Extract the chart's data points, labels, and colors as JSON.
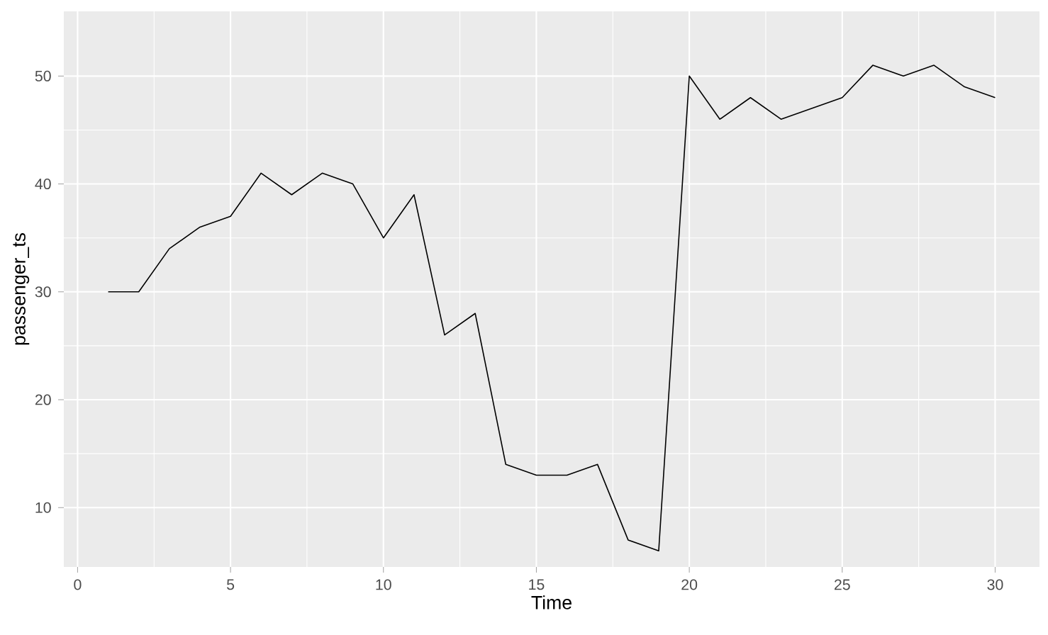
{
  "chart_data": {
    "type": "line",
    "xlabel": "Time",
    "ylabel": "passenger_ts",
    "x": [
      1,
      2,
      3,
      4,
      5,
      6,
      7,
      8,
      9,
      10,
      11,
      12,
      13,
      14,
      15,
      16,
      17,
      18,
      19,
      20,
      21,
      22,
      23,
      24,
      25,
      26,
      27,
      28,
      29,
      30
    ],
    "values": [
      30,
      30,
      34,
      36,
      37,
      41,
      39,
      41,
      40,
      35,
      39,
      26,
      28,
      14,
      13,
      13,
      14,
      7,
      6,
      50,
      46,
      48,
      46,
      47,
      48,
      51,
      50,
      51,
      49,
      48
    ],
    "color": "#000000",
    "xlim": [
      -0.45,
      31.45
    ],
    "ylim": [
      4.5,
      56
    ],
    "xticks": [
      0,
      5,
      10,
      15,
      20,
      25,
      30
    ],
    "yticks": [
      10,
      20,
      30,
      40,
      50
    ],
    "grid": true
  }
}
